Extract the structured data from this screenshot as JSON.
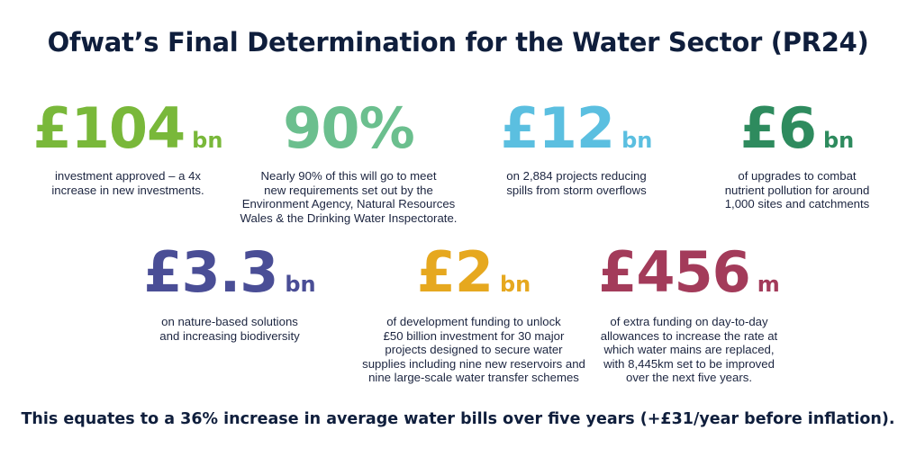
{
  "title": "Ofwat’s Final Determination for the Water Sector (PR24)",
  "stats": [
    {
      "value": "£104",
      "unit": "bn",
      "color": "#79b83a",
      "description": [
        "investment approved – a 4x",
        "increase in new investments."
      ]
    },
    {
      "value": "90%",
      "unit": "",
      "color": "#6bbf8e",
      "description": [
        "Nearly 90% of this will go to meet",
        "new requirements set out by the",
        "Environment Agency, Natural Resources",
        "Wales & the Drinking Water Inspectorate."
      ]
    },
    {
      "value": "£12",
      "unit": "bn",
      "color": "#5bbfe0",
      "description": [
        "on 2,884 projects reducing",
        "spills from storm overflows"
      ]
    },
    {
      "value": "£6",
      "unit": "bn",
      "color": "#2e8b5e",
      "description": [
        "of upgrades to combat",
        "nutrient pollution for around",
        "1,000 sites and catchments"
      ]
    },
    {
      "value": "£3.3",
      "unit": "bn",
      "color": "#4a4e96",
      "description": [
        "on nature-based solutions",
        "and increasing biodiversity"
      ]
    },
    {
      "value": "£2",
      "unit": "bn",
      "color": "#e6a81f",
      "description": [
        "of development funding to unlock",
        "£50 billion investment for 30 major",
        "projects designed to secure water",
        "supplies including nine new reservoirs and",
        "nine large-scale water transfer schemes"
      ]
    },
    {
      "value": "£456",
      "unit": "m",
      "color": "#a33b5a",
      "description": [
        "of extra funding on day-to-day",
        "allowances to increase the rate at",
        "which water mains are replaced,",
        "with 8,445km set to be improved",
        "over the next five years."
      ]
    }
  ],
  "footer": "This equates to a 36% increase in average water bills over five years (+£31/year before inflation)."
}
